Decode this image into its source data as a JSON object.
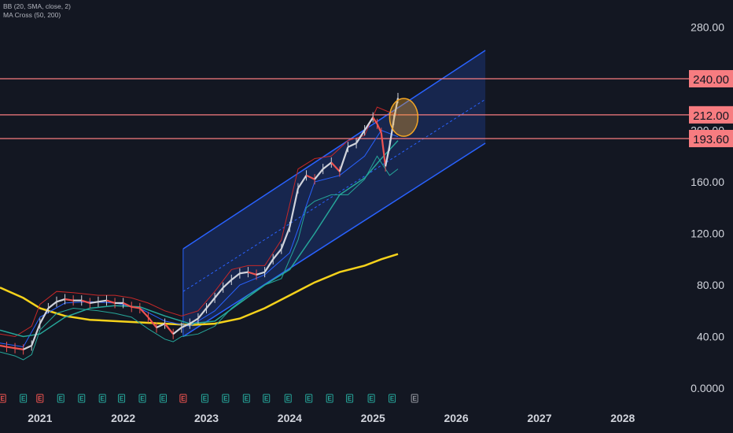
{
  "legend": {
    "bb": "BB (20, SMA, close, 2)",
    "ma": "MA Cross (50, 200)"
  },
  "colors": {
    "background": "#131722",
    "up": "#d1d4dc",
    "down": "#ef5350",
    "bb_upper": "#c62828",
    "bb_lower": "#26a69a",
    "bb_basis": "#2962ff",
    "ma50": "#26a69a",
    "ma200": "#f5d21b",
    "channel": "#2962ff",
    "hline": "#f77c80",
    "tag": "#f77c80",
    "circle": "#f5a623"
  },
  "chart_data": {
    "type": "line",
    "title": "",
    "y_ticks": [
      "280.00",
      "240.00",
      "200.00",
      "160.00",
      "120.00",
      "80.00",
      "40.00",
      "0.0000"
    ],
    "x_ticks": [
      "2021",
      "2022",
      "2023",
      "2024",
      "2025",
      "2026",
      "2027",
      "2028"
    ],
    "ylim": [
      0,
      300
    ],
    "xlim": [
      2020.52,
      2028.72
    ],
    "horizontal_levels": [
      {
        "label": "240.00",
        "value": 240
      },
      {
        "label": "212.00",
        "value": 212
      },
      {
        "label": "193.60",
        "value": 193.6
      }
    ],
    "price": {
      "x": [
        2020.52,
        2020.6,
        2020.7,
        2020.8,
        2020.9,
        2021.0,
        2021.1,
        2021.2,
        2021.3,
        2021.4,
        2021.5,
        2021.6,
        2021.7,
        2021.8,
        2021.9,
        2022.0,
        2022.1,
        2022.2,
        2022.3,
        2022.4,
        2022.5,
        2022.6,
        2022.7,
        2022.8,
        2022.9,
        2023.0,
        2023.1,
        2023.2,
        2023.3,
        2023.4,
        2023.5,
        2023.6,
        2023.7,
        2023.8,
        2023.9,
        2024.0,
        2024.1,
        2024.2,
        2024.3,
        2024.4,
        2024.5,
        2024.6,
        2024.7,
        2024.8,
        2024.9,
        2025.0,
        2025.05,
        2025.1,
        2025.15,
        2025.2,
        2025.25,
        2025.3
      ],
      "y": [
        33,
        32,
        31,
        30,
        33,
        50,
        62,
        67,
        69,
        68,
        68,
        66,
        67,
        68,
        66,
        66,
        63,
        62,
        55,
        47,
        50,
        42,
        47,
        50,
        54,
        62,
        70,
        78,
        84,
        89,
        90,
        88,
        90,
        100,
        108,
        125,
        155,
        165,
        162,
        170,
        175,
        168,
        187,
        190,
        200,
        210,
        205,
        198,
        172,
        188,
        208,
        225
      ]
    },
    "bb_upper": {
      "x": [
        2020.52,
        2020.7,
        2020.9,
        2021.0,
        2021.2,
        2021.4,
        2021.7,
        2021.9,
        2022.1,
        2022.3,
        2022.5,
        2022.7,
        2022.9,
        2023.1,
        2023.3,
        2023.5,
        2023.7,
        2023.9,
        2024.1,
        2024.3,
        2024.5,
        2024.7,
        2024.9,
        2025.05,
        2025.2,
        2025.3
      ],
      "y": [
        42,
        40,
        48,
        65,
        75,
        74,
        72,
        72,
        70,
        66,
        60,
        56,
        60,
        75,
        92,
        95,
        95,
        115,
        170,
        178,
        180,
        192,
        196,
        218,
        214,
        212
      ]
    },
    "bb_lower": {
      "x": [
        2020.52,
        2020.7,
        2020.8,
        2020.9,
        2021.0,
        2021.2,
        2021.4,
        2021.7,
        2021.9,
        2022.1,
        2022.3,
        2022.5,
        2022.6,
        2022.7,
        2022.9,
        2023.1,
        2023.3,
        2023.5,
        2023.7,
        2023.9,
        2024.1,
        2024.2,
        2024.3,
        2024.5,
        2024.7,
        2024.9,
        2025.05,
        2025.2,
        2025.3
      ],
      "y": [
        28,
        25,
        22,
        26,
        45,
        58,
        62,
        60,
        58,
        55,
        46,
        38,
        36,
        40,
        42,
        48,
        62,
        72,
        80,
        85,
        115,
        140,
        145,
        150,
        150,
        162,
        180,
        165,
        170
      ]
    },
    "bb_basis": {
      "x": [
        2020.52,
        2020.8,
        2021.0,
        2021.3,
        2021.6,
        2021.9,
        2022.2,
        2022.5,
        2022.8,
        2023.1,
        2023.4,
        2023.7,
        2024.0,
        2024.3,
        2024.6,
        2024.9,
        2025.1,
        2025.3
      ],
      "y": [
        35,
        32,
        55,
        66,
        67,
        66,
        62,
        52,
        48,
        60,
        80,
        88,
        105,
        160,
        165,
        180,
        200,
        195
      ]
    },
    "ma50": {
      "x": [
        2020.52,
        2020.8,
        2021.0,
        2021.3,
        2021.6,
        2021.9,
        2022.2,
        2022.5,
        2022.8,
        2023.1,
        2023.4,
        2023.7,
        2024.0,
        2024.3,
        2024.6,
        2024.9,
        2025.1,
        2025.3
      ],
      "y": [
        45,
        40,
        42,
        55,
        62,
        64,
        63,
        56,
        50,
        52,
        66,
        80,
        92,
        120,
        150,
        163,
        178,
        192
      ]
    },
    "ma200": {
      "x": [
        2020.52,
        2020.8,
        2021.0,
        2021.3,
        2021.6,
        2021.9,
        2022.2,
        2022.5,
        2022.8,
        2023.1,
        2023.4,
        2023.7,
        2024.0,
        2024.3,
        2024.6,
        2024.9,
        2025.1,
        2025.3
      ],
      "y": [
        78,
        70,
        62,
        56,
        53,
        52,
        51,
        50,
        49,
        50,
        54,
        62,
        72,
        82,
        90,
        95,
        100,
        104
      ]
    },
    "channel": {
      "upper": {
        "x": [
          2022.72,
          2026.35
        ],
        "y": [
          108,
          262
        ]
      },
      "mid": {
        "x": [
          2022.72,
          2026.35
        ],
        "y": [
          75,
          224
        ]
      },
      "lower": {
        "x": [
          2022.72,
          2026.35
        ],
        "y": [
          40,
          190
        ]
      }
    },
    "circle_marker": {
      "x": 2025.37,
      "y": 210
    },
    "earnings_markers": [
      {
        "x": 2020.55,
        "label": "E",
        "color": "#ef5350"
      },
      {
        "x": 2020.8,
        "label": "E",
        "color": "#26a69a"
      },
      {
        "x": 2021.0,
        "label": "E",
        "color": "#ef5350"
      },
      {
        "x": 2021.25,
        "label": "E",
        "color": "#26a69a"
      },
      {
        "x": 2021.5,
        "label": "E",
        "color": "#26a69a"
      },
      {
        "x": 2021.75,
        "label": "E",
        "color": "#26a69a"
      },
      {
        "x": 2021.98,
        "label": "E",
        "color": "#26a69a"
      },
      {
        "x": 2022.23,
        "label": "E",
        "color": "#26a69a"
      },
      {
        "x": 2022.48,
        "label": "E",
        "color": "#26a69a"
      },
      {
        "x": 2022.72,
        "label": "E",
        "color": "#ef5350"
      },
      {
        "x": 2022.98,
        "label": "E",
        "color": "#26a69a"
      },
      {
        "x": 2023.23,
        "label": "E",
        "color": "#26a69a"
      },
      {
        "x": 2023.48,
        "label": "E",
        "color": "#26a69a"
      },
      {
        "x": 2023.72,
        "label": "E",
        "color": "#26a69a"
      },
      {
        "x": 2023.98,
        "label": "E",
        "color": "#26a69a"
      },
      {
        "x": 2024.23,
        "label": "E",
        "color": "#26a69a"
      },
      {
        "x": 2024.48,
        "label": "E",
        "color": "#26a69a"
      },
      {
        "x": 2024.72,
        "label": "E",
        "color": "#26a69a"
      },
      {
        "x": 2024.98,
        "label": "E",
        "color": "#26a69a"
      },
      {
        "x": 2025.23,
        "label": "E",
        "color": "#26a69a"
      },
      {
        "x": 2025.5,
        "label": "E",
        "color": "#9598a1"
      }
    ]
  }
}
